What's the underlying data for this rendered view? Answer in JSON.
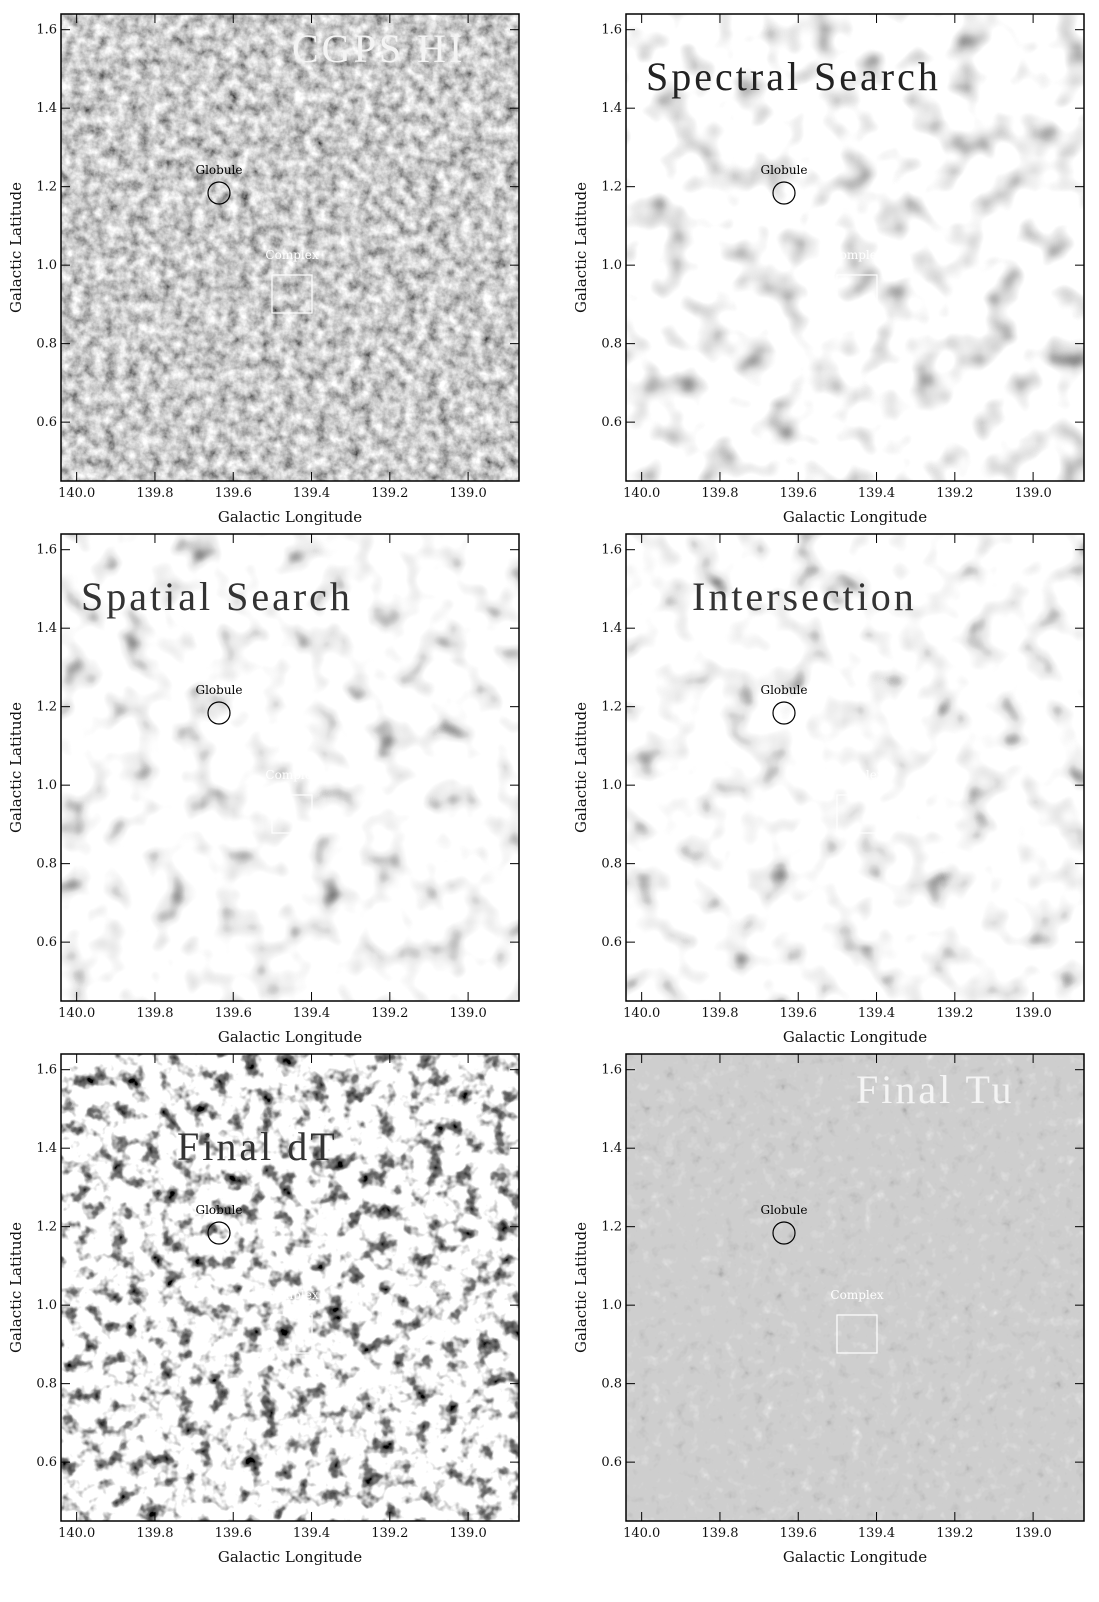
{
  "axes": {
    "x_label": "Galactic Longitude",
    "y_label": "Galactic Latitude",
    "xlim": [
      140.04,
      138.87
    ],
    "ylim": [
      0.45,
      1.64
    ],
    "xticks": [
      {
        "value": 140,
        "label": "140.0"
      },
      139.8,
      139.6,
      139.4,
      139.2,
      {
        "value": 139,
        "label": "139.0"
      }
    ],
    "yticks": [
      0.6,
      0.8,
      {
        "value": 1,
        "label": "1.0"
      },
      1.2,
      1.4,
      1.6
    ]
  },
  "annotations": {
    "globule": "Globule",
    "complex": "Complex"
  },
  "panels": [
    {
      "title": "CGPS HI"
    },
    {
      "title": "Spectral Search"
    },
    {
      "title": "Spatial Search"
    },
    {
      "title": "Intersection"
    },
    {
      "title": "Final dT"
    },
    {
      "title": "Final Tu"
    }
  ]
}
